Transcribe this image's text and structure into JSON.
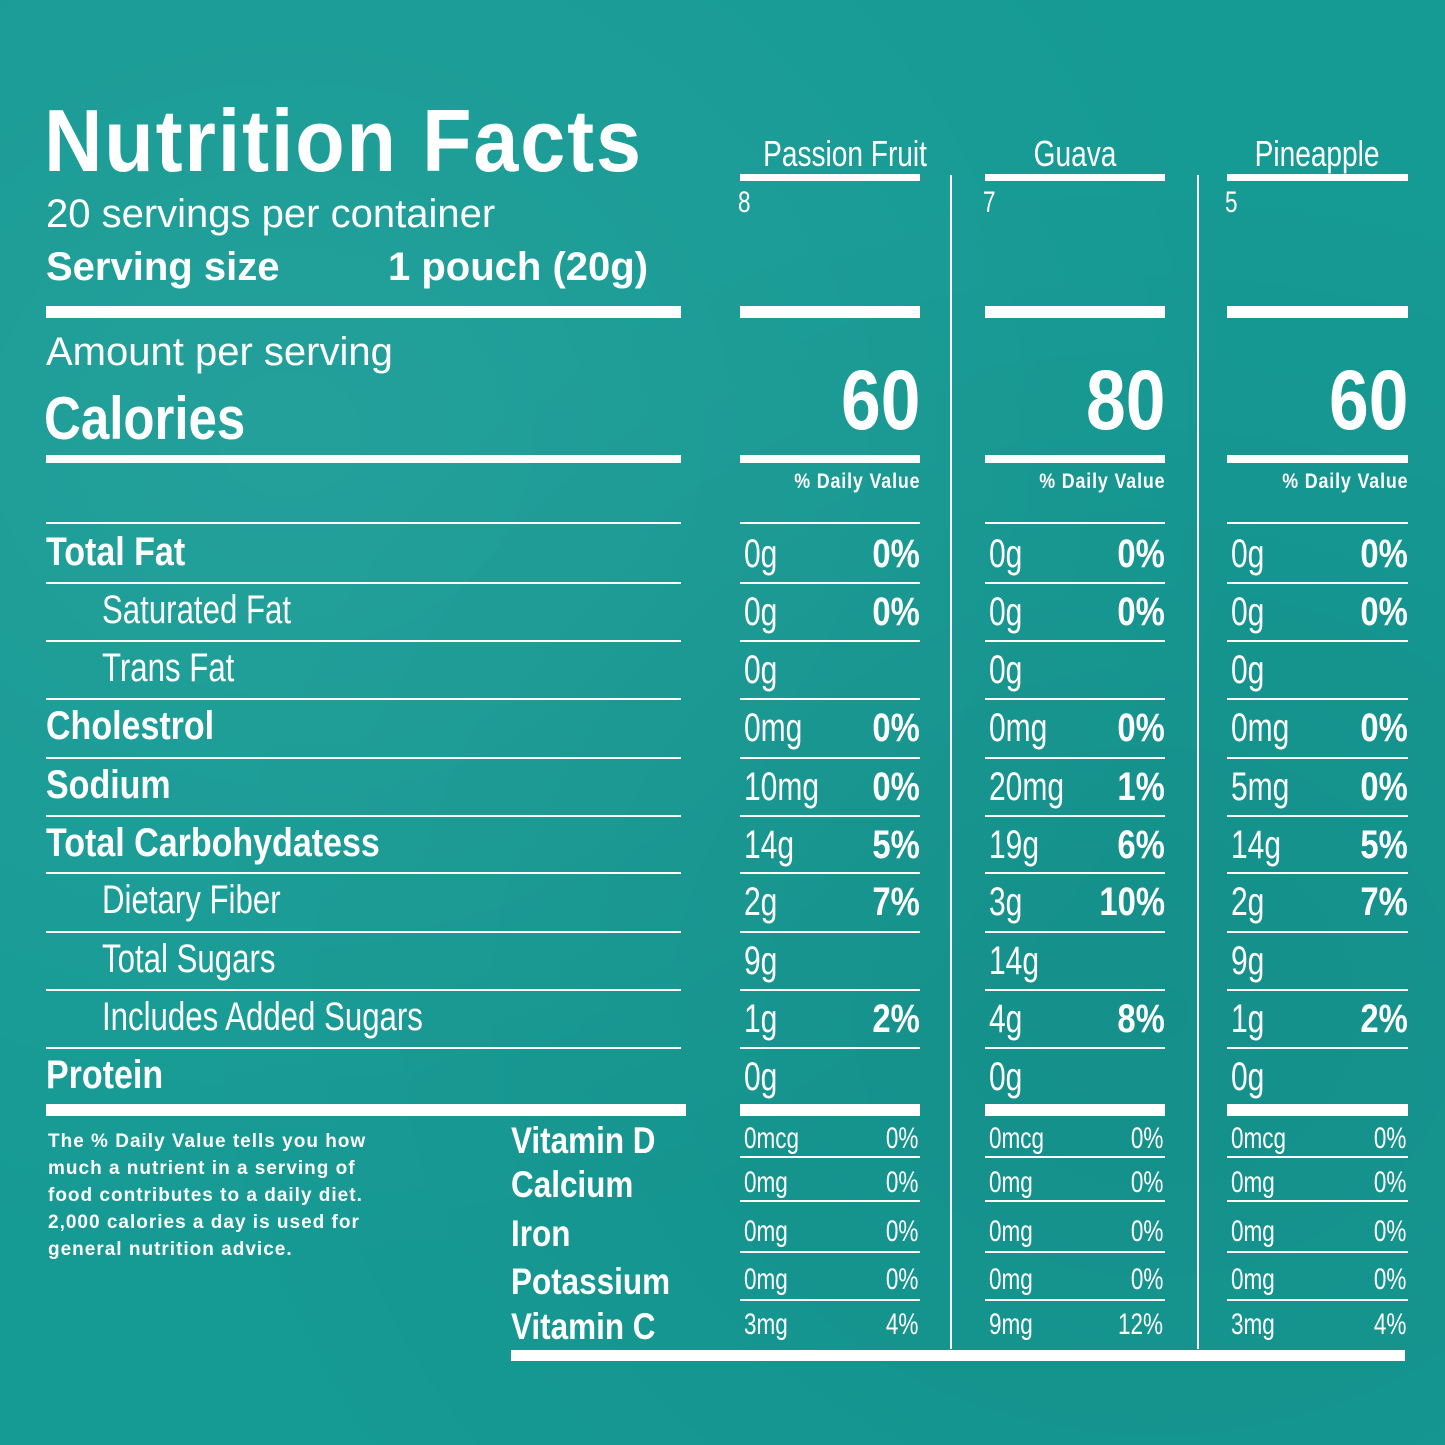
{
  "title": "Nutrition Facts",
  "servings": "20 servings per container",
  "serving_size_label": "Serving size",
  "serving_size_value": "1 pouch (20g)",
  "amount_per_serving": "Amount per serving",
  "calories_label": "Calories",
  "daily_value_label": "% Daily Value",
  "flavors": [
    {
      "name": "Passion Fruit",
      "count": "8",
      "calories": "60"
    },
    {
      "name": "Guava",
      "count": "7",
      "calories": "80"
    },
    {
      "name": "Pineapple",
      "count": "5",
      "calories": "60"
    }
  ],
  "nutrients": [
    {
      "label": "Total Fat",
      "bold": true,
      "indent": false,
      "values": [
        [
          "0g",
          "0%"
        ],
        [
          "0g",
          "0%"
        ],
        [
          "0g",
          "0%"
        ]
      ]
    },
    {
      "label": "Saturated Fat",
      "bold": false,
      "indent": true,
      "values": [
        [
          "0g",
          "0%"
        ],
        [
          "0g",
          "0%"
        ],
        [
          "0g",
          "0%"
        ]
      ]
    },
    {
      "label": "Trans Fat",
      "bold": false,
      "indent": true,
      "values": [
        [
          "0g",
          ""
        ],
        [
          "0g",
          ""
        ],
        [
          "0g",
          ""
        ]
      ]
    },
    {
      "label": "Cholestrol",
      "bold": true,
      "indent": false,
      "values": [
        [
          "0mg",
          "0%"
        ],
        [
          "0mg",
          "0%"
        ],
        [
          "0mg",
          "0%"
        ]
      ]
    },
    {
      "label": "Sodium",
      "bold": true,
      "indent": false,
      "values": [
        [
          "10mg",
          "0%"
        ],
        [
          "20mg",
          "1%"
        ],
        [
          "5mg",
          "0%"
        ]
      ]
    },
    {
      "label": "Total Carbohydatess",
      "bold": true,
      "indent": false,
      "values": [
        [
          "14g",
          "5%"
        ],
        [
          "19g",
          "6%"
        ],
        [
          "14g",
          "5%"
        ]
      ]
    },
    {
      "label": "Dietary Fiber",
      "bold": false,
      "indent": true,
      "values": [
        [
          "2g",
          "7%"
        ],
        [
          "3g",
          "10%"
        ],
        [
          "2g",
          "7%"
        ]
      ]
    },
    {
      "label": "Total Sugars",
      "bold": false,
      "indent": true,
      "values": [
        [
          "9g",
          ""
        ],
        [
          "14g",
          ""
        ],
        [
          "9g",
          ""
        ]
      ]
    },
    {
      "label": "Includes Added Sugars",
      "bold": false,
      "indent": true,
      "values": [
        [
          "1g",
          "2%"
        ],
        [
          "4g",
          "8%"
        ],
        [
          "1g",
          "2%"
        ]
      ]
    },
    {
      "label": "Protein",
      "bold": true,
      "indent": false,
      "values": [
        [
          "0g",
          ""
        ],
        [
          "0g",
          ""
        ],
        [
          "0g",
          ""
        ]
      ]
    }
  ],
  "vitamins": [
    {
      "label": "Vitamin D",
      "values": [
        [
          "0mcg",
          "0%"
        ],
        [
          "0mcg",
          "0%"
        ],
        [
          "0mcg",
          "0%"
        ]
      ]
    },
    {
      "label": "Calcium",
      "values": [
        [
          "0mg",
          "0%"
        ],
        [
          "0mg",
          "0%"
        ],
        [
          "0mg",
          "0%"
        ]
      ]
    },
    {
      "label": "Iron",
      "values": [
        [
          "0mg",
          "0%"
        ],
        [
          "0mg",
          "0%"
        ],
        [
          "0mg",
          "0%"
        ]
      ]
    },
    {
      "label": "Potassium",
      "values": [
        [
          "0mg",
          "0%"
        ],
        [
          "0mg",
          "0%"
        ],
        [
          "0mg",
          "0%"
        ]
      ]
    },
    {
      "label": "Vitamin C",
      "values": [
        [
          "3mg",
          "4%"
        ],
        [
          "9mg",
          "12%"
        ],
        [
          "3mg",
          "4%"
        ]
      ]
    }
  ],
  "footnote": [
    "The % Daily Value tells you how",
    "much a nutrient in a serving of",
    "food contributes to a daily diet.",
    "2,000 calories a day is used for",
    "general nutrition advice."
  ]
}
